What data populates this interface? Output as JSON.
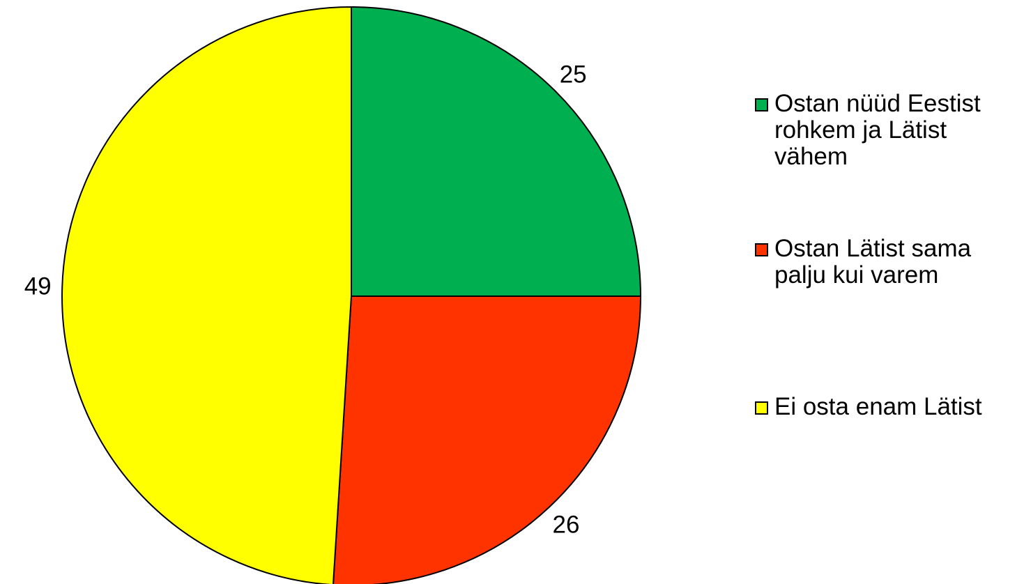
{
  "chart_data": {
    "type": "pie",
    "title": "",
    "slices": [
      {
        "name": "Ostan nüüd Eestist rohkem ja Lätist vähem",
        "value": 25,
        "label": "25",
        "color": "#00B050"
      },
      {
        "name": "Ostan Lätist sama palju kui varem",
        "value": 26,
        "label": "26",
        "color": "#FF3300"
      },
      {
        "name": "Ei osta enam Lätist",
        "value": 49,
        "label": "49",
        "color": "#FFFF00"
      }
    ],
    "start_angle_deg": 90,
    "direction": "clockwise",
    "legend_position": "right"
  },
  "legend": {
    "items": [
      {
        "text_lines": [
          "Ostan nüüd Eestist",
          "rohkem ja Lätist",
          "vähem"
        ]
      },
      {
        "text_lines": [
          "Ostan Lätist sama",
          "palju kui varem"
        ]
      },
      {
        "text_lines": [
          "Ei osta enam Lätist"
        ]
      }
    ]
  }
}
